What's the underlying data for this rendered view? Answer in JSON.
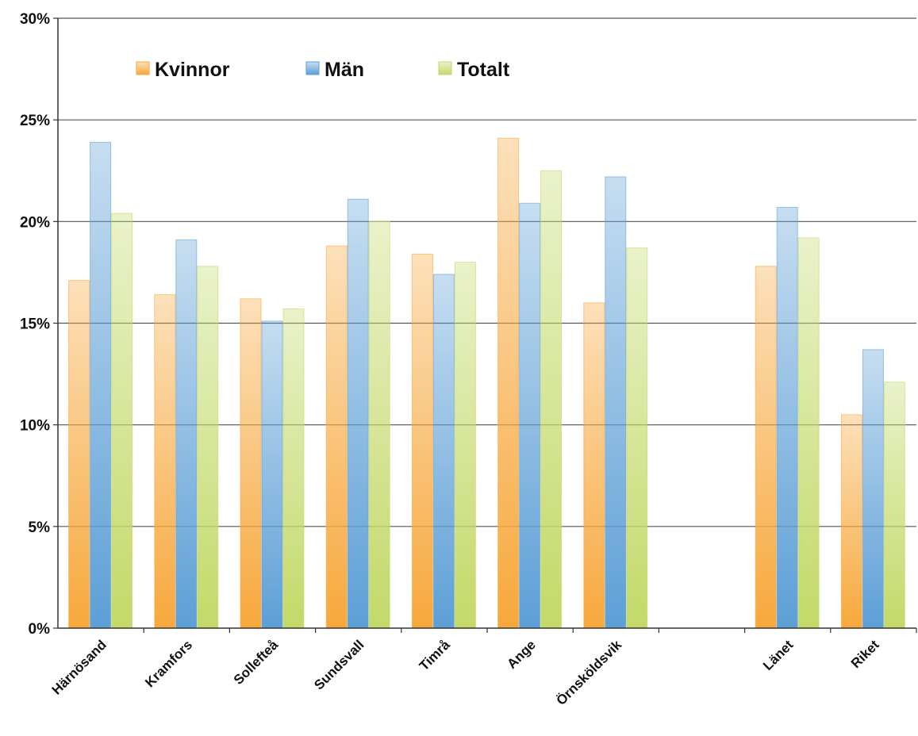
{
  "chart_data": {
    "type": "bar",
    "categories": [
      "Härnösand",
      "Kramfors",
      "Sollefteå",
      "Sundsvall",
      "Timrå",
      "Ange",
      "Örnsköldsvik",
      "",
      "Länet",
      "Riket"
    ],
    "series": [
      {
        "name": "Kvinnor",
        "values": [
          17.1,
          16.4,
          16.2,
          18.8,
          18.4,
          24.1,
          16.0,
          null,
          17.8,
          10.5
        ]
      },
      {
        "name": "Män",
        "values": [
          23.9,
          19.1,
          15.1,
          21.1,
          17.4,
          20.9,
          22.2,
          null,
          20.7,
          13.7
        ]
      },
      {
        "name": "Totalt",
        "values": [
          20.4,
          17.8,
          15.7,
          20.0,
          18.0,
          22.5,
          18.7,
          null,
          19.2,
          12.1
        ]
      }
    ],
    "yticks": [
      "0%",
      "5%",
      "10%",
      "15%",
      "20%",
      "25%",
      "30%"
    ],
    "ylim": [
      0,
      30
    ],
    "unit": "%",
    "grid": true,
    "legend_position": "top-left",
    "colors": {
      "Kvinnor": "#f7a83c",
      "Män": "#5d9fd6",
      "Totalt": "#c3d968",
      "grid": "#555555",
      "axis": "#333333"
    }
  }
}
